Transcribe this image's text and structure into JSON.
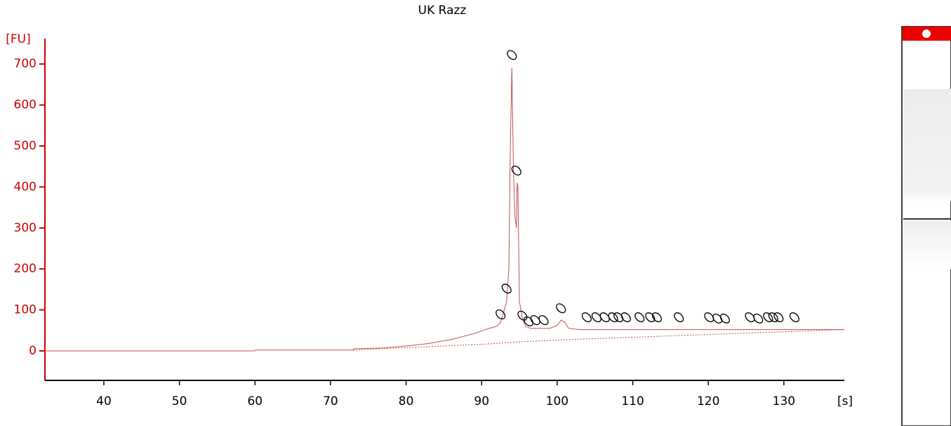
{
  "chart_data": {
    "type": "line",
    "title": "UK Razz",
    "y_label": "[FU]",
    "x_label": "[s]",
    "xlim": [
      32.2,
      138
    ],
    "ylim": [
      -72,
      762
    ],
    "xticks": [
      40,
      50,
      60,
      70,
      80,
      90,
      100,
      110,
      120,
      130
    ],
    "yticks": [
      0,
      100,
      200,
      300,
      400,
      500,
      600,
      700
    ],
    "series": [
      {
        "color": "#c0504d",
        "dashed": false,
        "x": [
          32.2,
          60,
          60.1,
          73,
          73.1,
          77,
          80,
          83,
          86,
          89,
          91,
          92,
          92.5,
          93,
          93.3,
          93.6,
          93.8,
          94,
          94.2,
          94.4,
          94.6,
          94.7,
          94.8,
          95,
          95.4,
          95.8,
          96.5,
          99,
          100,
          100.5,
          101,
          101.5,
          103,
          138
        ],
        "values": [
          0,
          0,
          2,
          2,
          5,
          7,
          12,
          18,
          28,
          42,
          55,
          60,
          70,
          100,
          120,
          200,
          500,
          690,
          450,
          330,
          300,
          410,
          400,
          120,
          80,
          60,
          55,
          55,
          62,
          75,
          70,
          55,
          52,
          52
        ]
      },
      {
        "color": "#c0504d",
        "dashed": true,
        "x": [
          73,
          80,
          90,
          95,
          102,
          138
        ],
        "values": [
          2,
          8,
          16,
          22,
          28,
          52
        ]
      }
    ],
    "peaks": {
      "color": "#000000",
      "x": [
        94.0,
        92.5,
        93.3,
        94.6,
        95.4,
        96.2,
        97.1,
        98.2,
        100.5,
        103.9,
        105.2,
        106.3,
        107.4,
        108.1,
        109.1,
        110.9,
        112.3,
        113.2,
        116.1,
        120.1,
        121.2,
        122.2,
        125.5,
        126.6,
        127.9,
        128.6,
        129.3,
        131.4
      ],
      "y": [
        722,
        89,
        152,
        440,
        86,
        72,
        75,
        75,
        104,
        82,
        82,
        82,
        82,
        82,
        82,
        82,
        82,
        82,
        82,
        82,
        79,
        79,
        82,
        79,
        82,
        82,
        82,
        82
      ]
    }
  }
}
